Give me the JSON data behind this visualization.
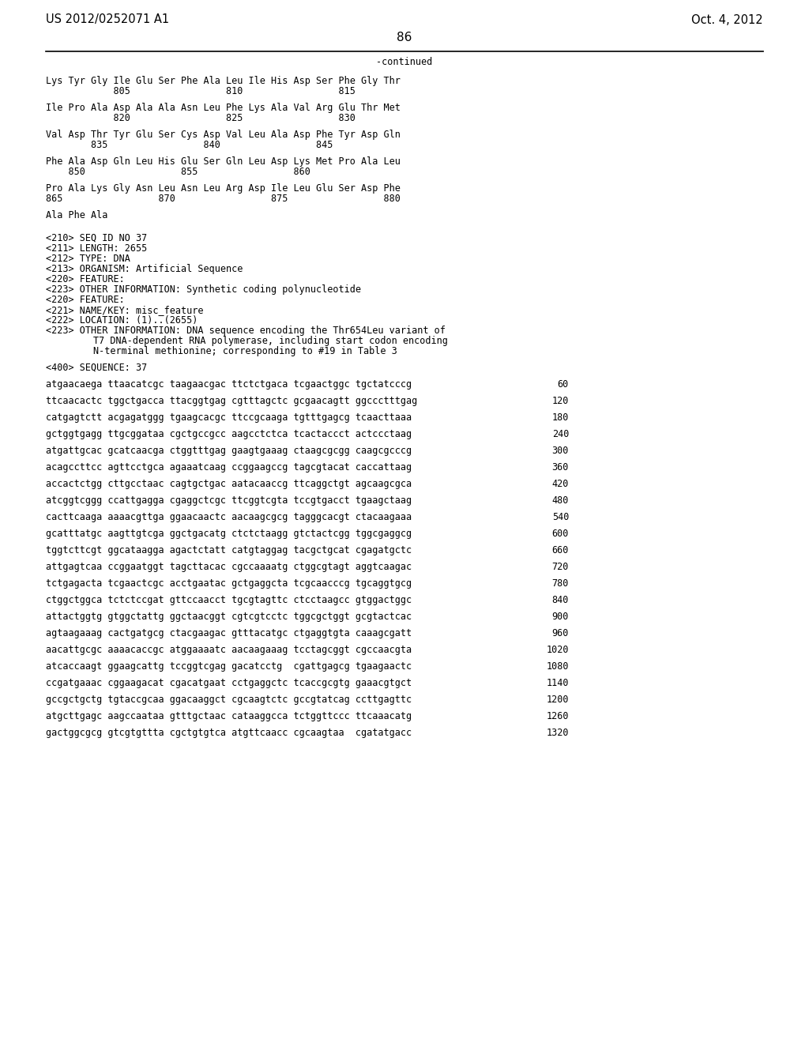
{
  "header_left": "US 2012/0252071 A1",
  "header_right": "Oct. 4, 2012",
  "page_number": "86",
  "continued_text": "-continued",
  "background_color": "#ffffff",
  "text_color": "#000000",
  "font_size": 9.5,
  "mono_font_size": 8.5,
  "content_lines": [
    {
      "type": "aa_seq",
      "line1": "Lys Tyr Gly Ile Glu Ser Phe Ala Leu Ile His Asp Ser Phe Gly Thr",
      "line2": "            805                 810                 815"
    },
    {
      "type": "blank"
    },
    {
      "type": "aa_seq",
      "line1": "Ile Pro Ala Asp Ala Ala Asn Leu Phe Lys Ala Val Arg Glu Thr Met",
      "line2": "            820                 825                 830"
    },
    {
      "type": "blank"
    },
    {
      "type": "aa_seq",
      "line1": "Val Asp Thr Tyr Glu Ser Cys Asp Val Leu Ala Asp Phe Tyr Asp Gln",
      "line2": "        835                 840                 845"
    },
    {
      "type": "blank"
    },
    {
      "type": "aa_seq",
      "line1": "Phe Ala Asp Gln Leu His Glu Ser Gln Leu Asp Lys Met Pro Ala Leu",
      "line2": "    850                 855                 860"
    },
    {
      "type": "blank"
    },
    {
      "type": "aa_seq",
      "line1": "Pro Ala Lys Gly Asn Leu Asn Leu Arg Asp Ile Leu Glu Ser Asp Phe",
      "line2": "865                 870                 875                 880"
    },
    {
      "type": "blank"
    },
    {
      "type": "aa_seq",
      "line1": "Ala Phe Ala",
      "line2": ""
    },
    {
      "type": "blank"
    },
    {
      "type": "blank"
    },
    {
      "type": "meta",
      "text": "<210> SEQ ID NO 37"
    },
    {
      "type": "meta",
      "text": "<211> LENGTH: 2655"
    },
    {
      "type": "meta",
      "text": "<212> TYPE: DNA"
    },
    {
      "type": "meta",
      "text": "<213> ORGANISM: Artificial Sequence"
    },
    {
      "type": "meta",
      "text": "<220> FEATURE:"
    },
    {
      "type": "meta",
      "text": "<223> OTHER INFORMATION: Synthetic coding polynucleotide"
    },
    {
      "type": "meta",
      "text": "<220> FEATURE:"
    },
    {
      "type": "meta",
      "text": "<221> NAME/KEY: misc_feature"
    },
    {
      "type": "meta",
      "text": "<222> LOCATION: (1)..(2655)"
    },
    {
      "type": "meta",
      "text": "<223> OTHER INFORMATION: DNA sequence encoding the Thr654Leu variant of"
    },
    {
      "type": "meta_indent",
      "text": "T7 DNA-dependent RNA polymerase, including start codon encoding"
    },
    {
      "type": "meta_indent",
      "text": "N-terminal methionine; corresponding to #19 in Table 3"
    },
    {
      "type": "blank"
    },
    {
      "type": "meta",
      "text": "<400> SEQUENCE: 37"
    },
    {
      "type": "blank"
    },
    {
      "type": "dna",
      "text": "atgaacaega ttaacatcgc taagaacgac ttctctgaca tcgaactggc tgctatcccg",
      "num": "60"
    },
    {
      "type": "blank"
    },
    {
      "type": "dna",
      "text": "ttcaacactc tggctgacca ttacggtgag cgtttagctc gcgaacagtt ggccctttgag",
      "num": "120"
    },
    {
      "type": "blank"
    },
    {
      "type": "dna",
      "text": "catgagtctt acgagatggg tgaagcacgc ttccgcaaga tgtttgagcg tcaacttaaa",
      "num": "180"
    },
    {
      "type": "blank"
    },
    {
      "type": "dna",
      "text": "gctggtgagg ttgcggataa cgctgccgcc aagcctctca tcactaccct actccctaag",
      "num": "240"
    },
    {
      "type": "blank"
    },
    {
      "type": "dna",
      "text": "atgattgcac gcatcaacga ctggtttgag gaagtgaaag ctaagcgcgg caagcgcccg",
      "num": "300"
    },
    {
      "type": "blank"
    },
    {
      "type": "dna",
      "text": "acagccttcc agttcctgca agaaatcaag ccggaagccg tagcgtacat caccattaag",
      "num": "360"
    },
    {
      "type": "blank"
    },
    {
      "type": "dna",
      "text": "accactctgg cttgcctaac cagtgctgac aatacaaccg ttcaggctgt agcaagcgca",
      "num": "420"
    },
    {
      "type": "blank"
    },
    {
      "type": "dna",
      "text": "atcggtcggg ccattgagga cgaggctcgc ttcggtcgta tccgtgacct tgaagctaag",
      "num": "480"
    },
    {
      "type": "blank"
    },
    {
      "type": "dna",
      "text": "cacttcaaga aaaacgttga ggaacaactc aacaagcgcg tagggcacgt ctacaagaaa",
      "num": "540"
    },
    {
      "type": "blank"
    },
    {
      "type": "dna",
      "text": "gcatttatgc aagttgtcga ggctgacatg ctctctaagg gtctactcgg tggcgaggcg",
      "num": "600"
    },
    {
      "type": "blank"
    },
    {
      "type": "dna",
      "text": "tggtcttcgt ggcataagga agactctatt catgtaggag tacgctgcat cgagatgctc",
      "num": "660"
    },
    {
      "type": "blank"
    },
    {
      "type": "dna",
      "text": "attgagtcaa ccggaatggt tagcttacac cgccaaaatg ctggcgtagt aggtcaagac",
      "num": "720"
    },
    {
      "type": "blank"
    },
    {
      "type": "dna",
      "text": "tctgagacta tcgaactcgc acctgaatac gctgaggcta tcgcaacccg tgcaggtgcg",
      "num": "780"
    },
    {
      "type": "blank"
    },
    {
      "type": "dna",
      "text": "ctggctggca tctctccgat gttccaacct tgcgtagttc ctcctaagcc gtggactggc",
      "num": "840"
    },
    {
      "type": "blank"
    },
    {
      "type": "dna",
      "text": "attactggtg gtggctattg ggctaacggt cgtcgtcctc tggcgctggt gcgtactcac",
      "num": "900"
    },
    {
      "type": "blank"
    },
    {
      "type": "dna",
      "text": "agtaagaaag cactgatgcg ctacgaagac gtttacatgc ctgaggtgta caaagcgatt",
      "num": "960"
    },
    {
      "type": "blank"
    },
    {
      "type": "dna",
      "text": "aacattgcgc aaaacaccgc atggaaaatc aacaagaaag tcctagcggt cgccaacgta",
      "num": "1020"
    },
    {
      "type": "blank"
    },
    {
      "type": "dna",
      "text": "atcaccaagt ggaagcattg tccggtcgag gacatcctg  cgattgagcg tgaagaactc",
      "num": "1080"
    },
    {
      "type": "blank"
    },
    {
      "type": "dna",
      "text": "ccgatgaaac cggaagacat cgacatgaat cctgaggctc tcaccgcgtg gaaacgtgct",
      "num": "1140"
    },
    {
      "type": "blank"
    },
    {
      "type": "dna",
      "text": "gccgctgctg tgtaccgcaa ggacaaggct cgcaagtctc gccgtatcag ccttgagttc",
      "num": "1200"
    },
    {
      "type": "blank"
    },
    {
      "type": "dna",
      "text": "atgcttgagc aagccaataa gtttgctaac cataaggcca tctggttccc ttcaaacatg",
      "num": "1260"
    },
    {
      "type": "blank"
    },
    {
      "type": "dna",
      "text": "gactggcgcg gtcgtgttta cgctgtgtca atgttcaacc cgcaagtaa  cgatatgacc",
      "num": "1320"
    }
  ]
}
